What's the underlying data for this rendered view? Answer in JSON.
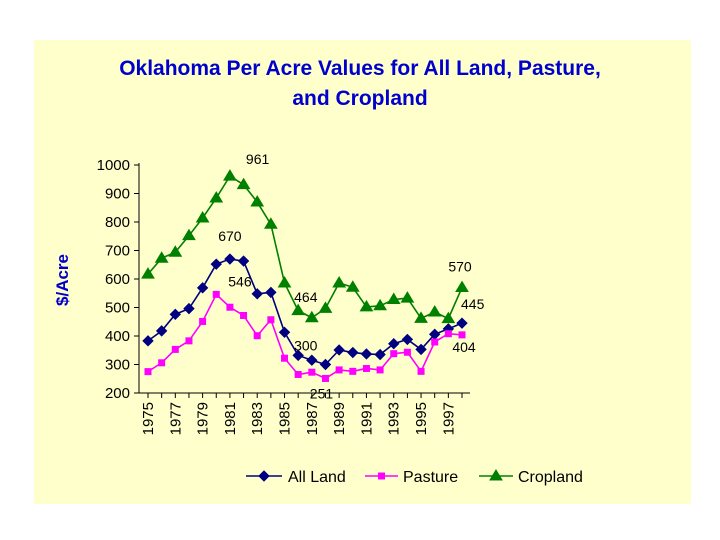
{
  "chart_data": {
    "type": "line",
    "title": [
      "Oklahoma Per Acre Values for All Land, Pasture,",
      "and Cropland"
    ],
    "ylabel": "$/Acre",
    "xlabel": "",
    "ylim": [
      200,
      1000
    ],
    "yticks": [
      200,
      300,
      400,
      500,
      600,
      700,
      800,
      900,
      1000
    ],
    "x": [
      1975,
      1976,
      1977,
      1978,
      1979,
      1980,
      1981,
      1982,
      1983,
      1984,
      1985,
      1986,
      1987,
      1988,
      1989,
      1990,
      1991,
      1992,
      1993,
      1994,
      1995,
      1996,
      1997,
      1998
    ],
    "xtick_labels": [
      "1975",
      "1977",
      "1979",
      "1981",
      "1983",
      "1985",
      "1987",
      "1989",
      "1991",
      "1993",
      "1995",
      "1997"
    ],
    "series": [
      {
        "name": "All Land",
        "color": "#000080",
        "marker": "diamond",
        "values": [
          383,
          418,
          476,
          496,
          569,
          652,
          670,
          663,
          548,
          553,
          413,
          332,
          315,
          300,
          351,
          342,
          337,
          335,
          373,
          388,
          353,
          406,
          425,
          445
        ]
      },
      {
        "name": "Pasture",
        "color": "#ff00ff",
        "marker": "square",
        "values": [
          275,
          306,
          353,
          383,
          451,
          546,
          501,
          472,
          401,
          457,
          322,
          265,
          273,
          251,
          281,
          276,
          286,
          281,
          338,
          343,
          276,
          379,
          408,
          404
        ]
      },
      {
        "name": "Cropland",
        "color": "#008000",
        "marker": "triangle",
        "values": [
          617,
          673,
          694,
          752,
          814,
          884,
          961,
          931,
          870,
          792,
          586,
          489,
          464,
          497,
          586,
          571,
          502,
          506,
          528,
          533,
          462,
          484,
          461,
          570
        ]
      }
    ],
    "annotations": [
      {
        "text": "961",
        "series": 2,
        "index": 6
      },
      {
        "text": "670",
        "series": 0,
        "index": 6
      },
      {
        "text": "546",
        "series": 1,
        "index": 5
      },
      {
        "text": "464",
        "series": 2,
        "index": 12
      },
      {
        "text": "300",
        "series": 0,
        "index": 13
      },
      {
        "text": "251",
        "series": 1,
        "index": 13
      },
      {
        "text": "570",
        "series": 2,
        "index": 23
      },
      {
        "text": "445",
        "series": 0,
        "index": 23
      },
      {
        "text": "404",
        "series": 1,
        "index": 23
      }
    ],
    "legend": "bottom",
    "grid": false,
    "background": "#ffffcc"
  }
}
